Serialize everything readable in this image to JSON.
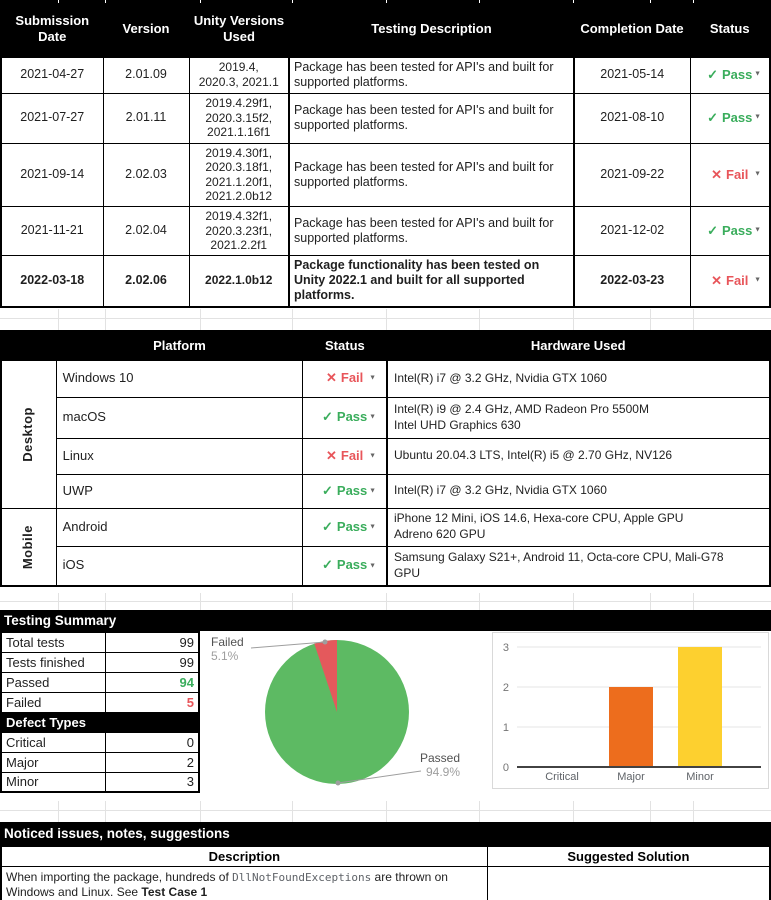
{
  "colors": {
    "pass_green": "#3aad5c",
    "fail_red": "#e8555a",
    "pie_green": "#5dba63",
    "pie_red": "#e4595c",
    "bar_orange": "#ed6d1d",
    "bar_yellow": "#fdd02f",
    "header_bg": "#000000"
  },
  "submissions": {
    "headers": [
      "Submission Date",
      "Version",
      "Unity Versions Used",
      "Testing Description",
      "Completion Date",
      "Status"
    ],
    "rows": [
      {
        "date": "2021-04-27",
        "version": "2.01.09",
        "unity": "2019.4,\n2020.3, 2021.1",
        "description": "Package has been tested for API's and built for supported platforms.",
        "completion": "2021-05-14",
        "status": "Pass",
        "icon": "✓"
      },
      {
        "date": "2021-07-27",
        "version": "2.01.11",
        "unity": "2019.4.29f1,\n2020.3.15f2,\n2021.1.16f1",
        "description": "Package has been tested for API's and built for supported platforms.",
        "completion": "2021-08-10",
        "status": "Pass",
        "icon": "✓"
      },
      {
        "date": "2021-09-14",
        "version": "2.02.03",
        "unity": "2019.4.30f1,\n2020.3.18f1,\n2021.1.20f1,\n2021.2.0b12",
        "description": "Package has been tested for API's and built for supported platforms.",
        "completion": "2021-09-22",
        "status": "Fail",
        "icon": "✕"
      },
      {
        "date": "2021-11-21",
        "version": "2.02.04",
        "unity": "2019.4.32f1,\n2020.3.23f1,\n2021.2.2f1",
        "description": "Package has been tested for API's and built for supported platforms.",
        "completion": "2021-12-02",
        "status": "Pass",
        "icon": "✓"
      },
      {
        "date": "2022-03-18",
        "version": "2.02.06",
        "unity": "2022.1.0b12",
        "description": "Package functionality has been tested on Unity 2022.1 and built for all supported platforms.",
        "completion": "2022-03-23",
        "status": "Fail",
        "icon": "✕"
      }
    ]
  },
  "platforms": {
    "headers": [
      "Platform",
      "Status",
      "Hardware Used"
    ],
    "groups": [
      {
        "name": "Desktop"
      },
      {
        "name": "Mobile"
      }
    ],
    "rows": [
      {
        "platform": "Windows 10",
        "status": "Fail",
        "icon": "✕",
        "hardware": "Intel(R) i7 @ 3.2 GHz, Nvidia GTX 1060"
      },
      {
        "platform": "macOS",
        "status": "Pass",
        "icon": "✓",
        "hardware": "Intel(R) i9 @ 2.4 GHz, AMD Radeon Pro 5500M\nIntel UHD Graphics 630"
      },
      {
        "platform": "Linux",
        "status": "Fail",
        "icon": "✕",
        "hardware": "Ubuntu 20.04.3 LTS, Intel(R) i5 @ 2.70 GHz, NV126"
      },
      {
        "platform": "UWP",
        "status": "Pass",
        "icon": "✓",
        "hardware": "Intel(R) i7 @ 3.2 GHz, Nvidia GTX 1060"
      },
      {
        "platform": "Android",
        "status": "Pass",
        "icon": "✓",
        "hardware": "iPhone 12 Mini, iOS 14.6, Hexa-core CPU, Apple GPU\nAdreno 620 GPU"
      },
      {
        "platform": "iOS",
        "status": "Pass",
        "icon": "✓",
        "hardware": "Samsung Galaxy S21+, Android 11, Octa-core CPU, Mali-G78\nGPU"
      }
    ]
  },
  "summary": {
    "title": "Testing Summary",
    "rows": [
      {
        "label": "Total tests",
        "value": "99",
        "style": "plain"
      },
      {
        "label": "Tests finished",
        "value": "99",
        "style": "plain"
      },
      {
        "label": "Passed",
        "value": "94",
        "style": "green"
      },
      {
        "label": "Failed",
        "value": "5",
        "style": "red"
      }
    ],
    "defect_title": "Defect Types",
    "defect_rows": [
      {
        "label": "Critical",
        "value": "0"
      },
      {
        "label": "Major",
        "value": "2"
      },
      {
        "label": "Minor",
        "value": "3"
      }
    ]
  },
  "chart_data": [
    {
      "type": "pie",
      "labels": [
        "Failed",
        "Passed"
      ],
      "values": [
        5.1,
        94.9
      ],
      "counts": [
        5,
        94
      ],
      "colors": [
        "#e4595c",
        "#5dba63"
      ],
      "slice_labels": [
        {
          "name": "Failed",
          "pct": "5.1%"
        },
        {
          "name": "Passed",
          "pct": "94.9%"
        }
      ],
      "legend_position": "outside-callouts",
      "title": ""
    },
    {
      "type": "bar",
      "categories": [
        "Critical",
        "Major",
        "Minor"
      ],
      "values": [
        0,
        2,
        3
      ],
      "colors": [
        "#cccccc",
        "#ed6d1d",
        "#fdd02f"
      ],
      "ylim": [
        0,
        3
      ],
      "ytick_step": 1,
      "grid": true,
      "title": "",
      "xlabel": "",
      "ylabel": ""
    }
  ],
  "issues": {
    "title": "Noticed issues, notes, suggestions",
    "headers": [
      "Description",
      "Suggested Solution"
    ],
    "row": {
      "pre": "When importing the package, hundreds of ",
      "code": "DllNotFoundExceptions",
      "mid": " are thrown on Windows and Linux. See ",
      "bold": "Test Case 1",
      "solution": ""
    }
  }
}
